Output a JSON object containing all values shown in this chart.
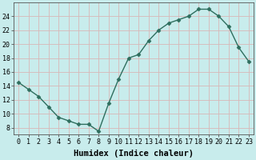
{
  "x": [
    0,
    1,
    2,
    3,
    4,
    5,
    6,
    7,
    8,
    9,
    10,
    11,
    12,
    13,
    14,
    15,
    16,
    17,
    18,
    19,
    20,
    21,
    22,
    23
  ],
  "y": [
    14.5,
    13.5,
    12.5,
    11.0,
    9.5,
    9.0,
    8.5,
    8.5,
    7.5,
    11.5,
    15.0,
    18.0,
    18.5,
    20.5,
    22.0,
    23.0,
    23.5,
    24.0,
    25.0,
    25.0,
    24.0,
    22.5,
    19.5,
    17.5
  ],
  "line_color": "#2e6e5e",
  "bg_color": "#c8ecec",
  "grid_color": "#d8b8b8",
  "xlabel": "Humidex (Indice chaleur)",
  "xlim": [
    -0.5,
    23.5
  ],
  "ylim": [
    7,
    26
  ],
  "yticks": [
    8,
    10,
    12,
    14,
    16,
    18,
    20,
    22,
    24
  ],
  "xticks": [
    0,
    1,
    2,
    3,
    4,
    5,
    6,
    7,
    8,
    9,
    10,
    11,
    12,
    13,
    14,
    15,
    16,
    17,
    18,
    19,
    20,
    21,
    22,
    23
  ],
  "tick_label_size": 6.0,
  "xlabel_size": 7.5,
  "marker": "D",
  "marker_size": 2.5,
  "linewidth": 1.0
}
